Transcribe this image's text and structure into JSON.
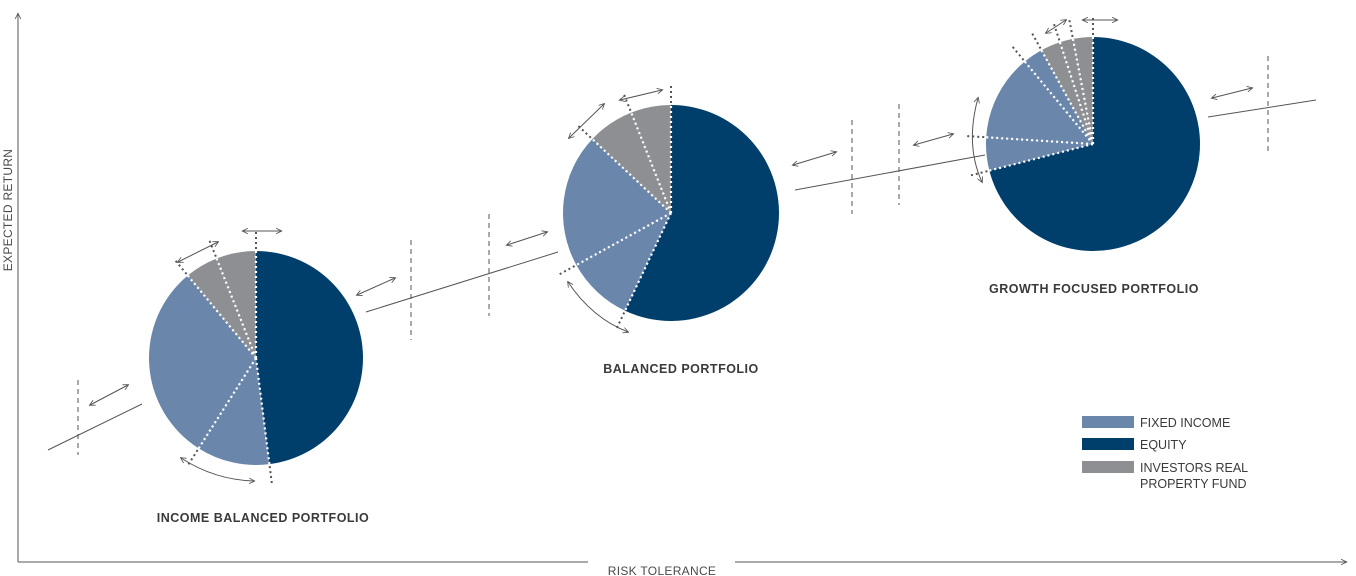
{
  "chart_data": {
    "type": "pie",
    "title": "",
    "xlabel": "RISK TOLERANCE",
    "ylabel": "EXPECTED RETURN",
    "colors": {
      "fixed_income": "#6a86aa",
      "equity": "#003e6b",
      "real_property": "#8d8f92",
      "lines": "#555555"
    },
    "legend": {
      "position": "bottom-right",
      "entries": [
        {
          "key": "fixed_income",
          "lines": [
            "FIXED INCOME"
          ]
        },
        {
          "key": "equity",
          "lines": [
            "EQUITY"
          ]
        },
        {
          "key": "real_property",
          "lines": [
            "INVESTORS REAL",
            "PROPERTY FUND"
          ]
        }
      ]
    },
    "portfolios": [
      {
        "name": "INCOME BALANCED PORTFOLIO",
        "slices": [
          {
            "key": "equity",
            "value": 48
          },
          {
            "key": "fixed_income",
            "value": 11
          },
          {
            "key": "fixed_income",
            "value": 30
          },
          {
            "key": "real_property",
            "value": 5
          },
          {
            "key": "real_property",
            "value": 6
          }
        ]
      },
      {
        "name": "BALANCED PORTFOLIO",
        "slices": [
          {
            "key": "equity",
            "value": 57
          },
          {
            "key": "fixed_income",
            "value": 10
          },
          {
            "key": "fixed_income",
            "value": 20
          },
          {
            "key": "real_property",
            "value": 7
          },
          {
            "key": "real_property",
            "value": 6
          }
        ]
      },
      {
        "name": "GROWTH FOCUSED PORTFOLIO",
        "slices": [
          {
            "key": "equity",
            "value": 71
          },
          {
            "key": "fixed_income",
            "value": 5
          },
          {
            "key": "fixed_income",
            "value": 13
          },
          {
            "key": "fixed_income",
            "value": 3
          },
          {
            "key": "real_property",
            "value": 3
          },
          {
            "key": "real_property",
            "value": 2
          },
          {
            "key": "real_property",
            "value": 3
          }
        ]
      }
    ]
  }
}
